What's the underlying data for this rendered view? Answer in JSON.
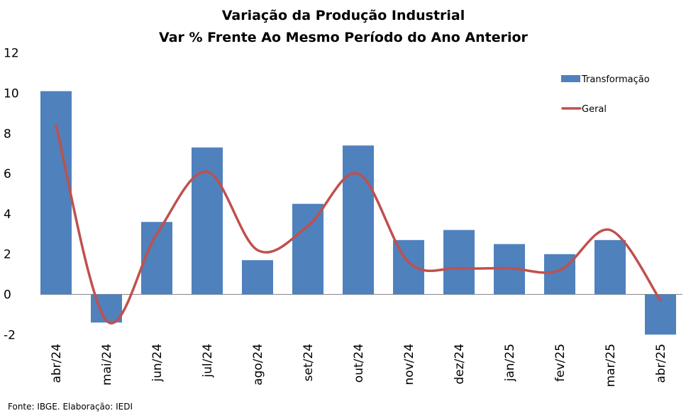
{
  "chart_data": {
    "type": "bar",
    "title": [
      "Variação da Produção Industrial",
      "Var % Frente Ao Mesmo Período do Ano Anterior"
    ],
    "categories": [
      "abr/24",
      "mai/24",
      "jun/24",
      "jul/24",
      "ago/24",
      "set/24",
      "out/24",
      "nov/24",
      "dez/24",
      "jan/25",
      "fev/25",
      "mar/25",
      "abr/25"
    ],
    "series": [
      {
        "name": "Transformação",
        "type": "bar",
        "color": "#4f81bd",
        "values": [
          10.1,
          -1.4,
          3.6,
          7.3,
          1.7,
          4.5,
          7.4,
          2.7,
          3.2,
          2.5,
          2.0,
          2.7,
          -2.0
        ]
      },
      {
        "name": "Geral",
        "type": "line",
        "color": "#c0504d",
        "values": [
          8.4,
          -1.3,
          3.0,
          6.1,
          2.2,
          3.4,
          6.0,
          1.6,
          1.3,
          1.3,
          1.2,
          3.2,
          -0.3
        ]
      }
    ],
    "yticks": [
      -2,
      0,
      2,
      4,
      6,
      8,
      10,
      12
    ],
    "ylim": [
      -2,
      12
    ],
    "grid": false,
    "legend": "top-right"
  },
  "source": "Fonte: IBGE. Elaboração: IEDI"
}
